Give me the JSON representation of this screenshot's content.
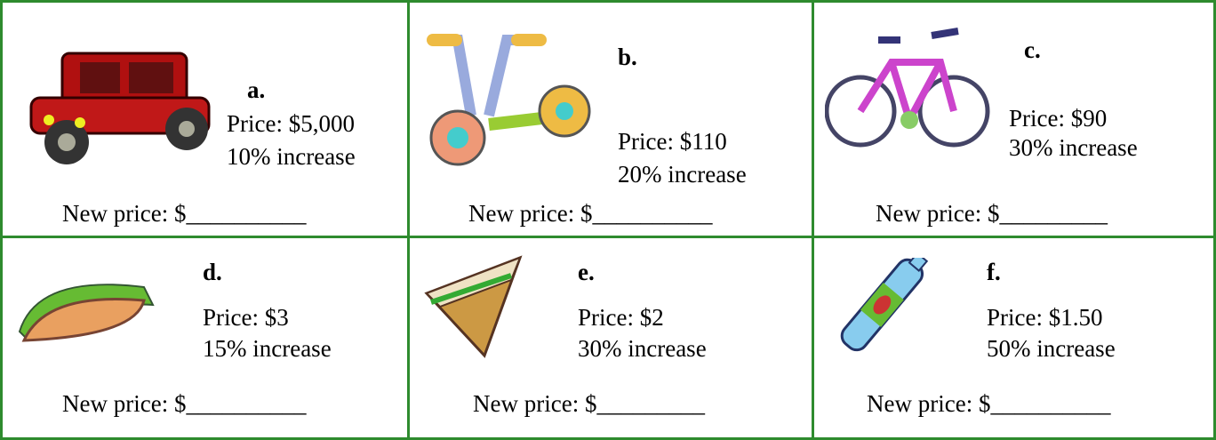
{
  "cells": [
    {
      "label": "a.",
      "price": "Price: $5,000",
      "increase": "10% increase",
      "new_price": "New price: $__________"
    },
    {
      "label": "b.",
      "price": "Price: $110",
      "increase": "20% increase",
      "new_price": "New price: $__________"
    },
    {
      "label": "c.",
      "price": "Price: $90",
      "increase": "30% increase",
      "new_price": "New price: $_________"
    },
    {
      "label": "d.",
      "price": "Price: $3",
      "increase": "15% increase",
      "new_price": "New price: $__________"
    },
    {
      "label": "e.",
      "price": "Price: $2",
      "increase": "30% increase",
      "new_price": "New price: $_________"
    },
    {
      "label": "f.",
      "price": "Price: $1.50",
      "increase": "50% increase",
      "new_price": "New price: $__________"
    }
  ]
}
